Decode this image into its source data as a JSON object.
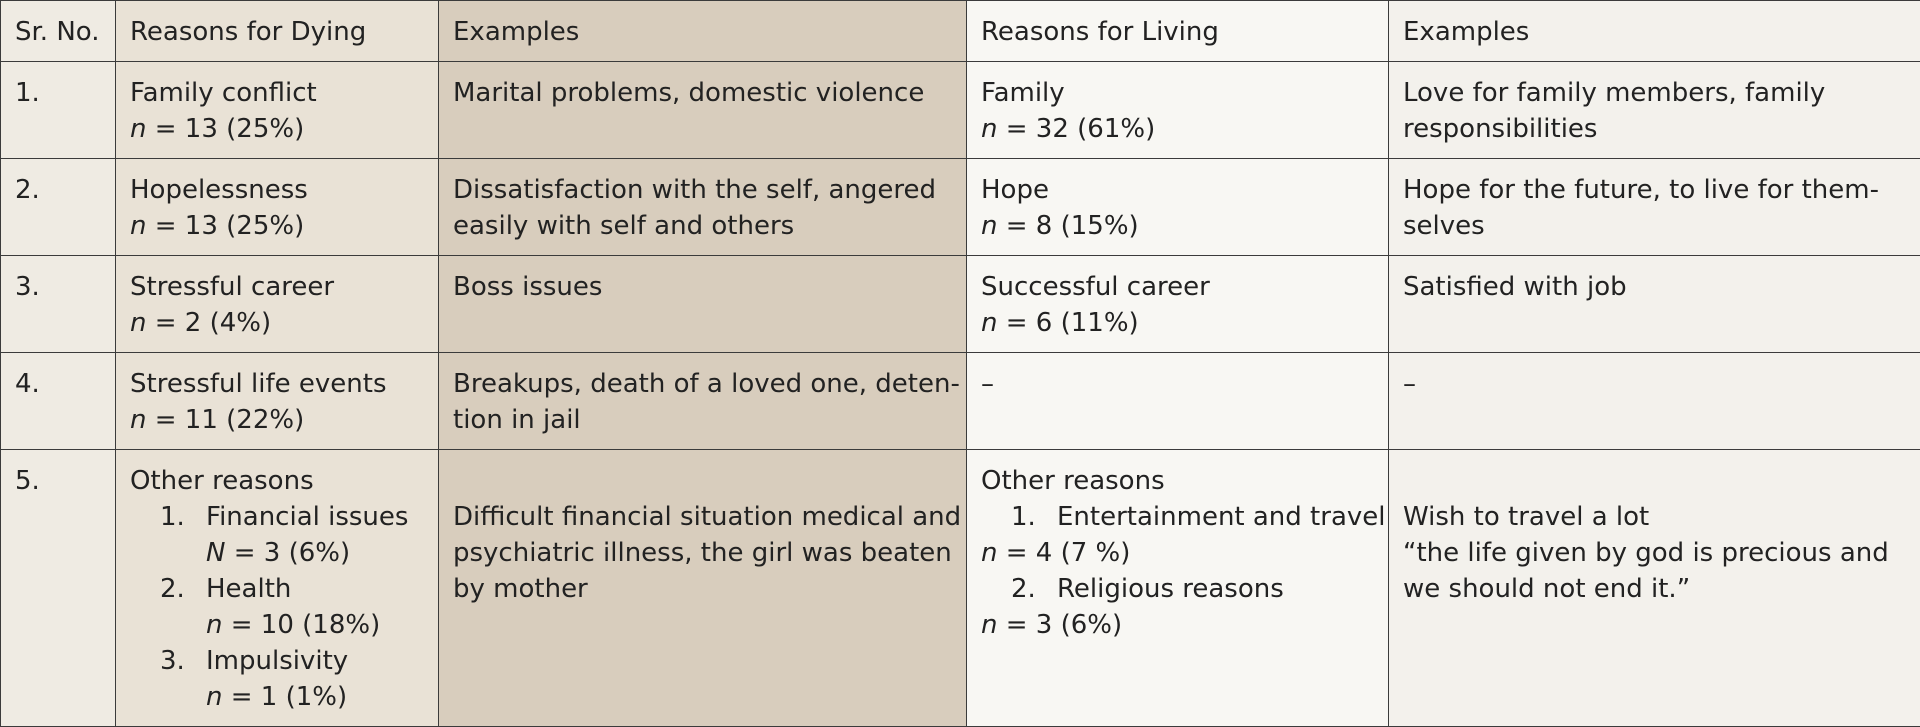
{
  "headers": [
    "Sr. No.",
    "Reasons for Dying",
    "Examples",
    "Reasons for Living",
    "Examples"
  ],
  "rows": [
    {
      "sr": "1.",
      "dying": {
        "label": "Family conflict",
        "n_var": "n",
        "n_text": "= 13 (25%)"
      },
      "dying_examples": "Marital problems, domestic violence",
      "living": {
        "label": "Family",
        "n_var": "n",
        "n_text": "= 32 (61%)"
      },
      "living_examples": [
        "Love for family members, family",
        "responsibilities"
      ]
    },
    {
      "sr": "2.",
      "dying": {
        "label": "Hopelessness",
        "n_var": "n",
        "n_text": "= 13 (25%)"
      },
      "dying_examples": [
        "Dissatisfaction with the self, angered",
        "easily with self and others"
      ],
      "living": {
        "label": "Hope",
        "n_var": "n",
        "n_text": "= 8 (15%)"
      },
      "living_examples": [
        "Hope for the future, to live for them-",
        "selves"
      ]
    },
    {
      "sr": "3.",
      "dying": {
        "label": "Stressful career",
        "n_var": "n",
        "n_text": "= 2 (4%)"
      },
      "dying_examples": "Boss issues",
      "living": {
        "label": "Successful career",
        "n_var": "n",
        "n_text": "= 6 (11%)"
      },
      "living_examples": "Satisfied with job"
    },
    {
      "sr": "4.",
      "dying": {
        "label": "Stressful life events",
        "n_var": "n",
        "n_text": "= 11 (22%)"
      },
      "dying_examples": [
        "Breakups, death of a loved one, deten-",
        "tion in jail"
      ],
      "living": {
        "label": "–"
      },
      "living_examples": "–"
    },
    {
      "sr": "5.",
      "dying": {
        "label": "Other reasons",
        "subitems": [
          {
            "num": "1.",
            "label": "Financial issues",
            "n_var": "N",
            "n_text": "= 3 (6%)"
          },
          {
            "num": "2.",
            "label": "Health",
            "n_var": "n",
            "n_text": "= 10 (18%)"
          },
          {
            "num": "3.",
            "label": "Impulsivity",
            "n_var": "n",
            "n_text": "= 1 (1%)"
          }
        ]
      },
      "dying_examples": [
        "Difficult financial situation medical and",
        "psychiatric illness, the girl was beaten",
        "by mother"
      ],
      "living": {
        "label": "Other reasons",
        "subitems": [
          {
            "num": "1.",
            "label": "Entertainment and travel",
            "n_var": "n",
            "n_text": "= 4 (7 %)"
          },
          {
            "num": "2.",
            "label": "Religious reasons",
            "n_var": "n",
            "n_text": "= 3 (6%)"
          }
        ]
      },
      "living_examples": [
        "Wish to travel a lot",
        "“the life given by god is precious and",
        "we should not end it.”"
      ]
    }
  ]
}
